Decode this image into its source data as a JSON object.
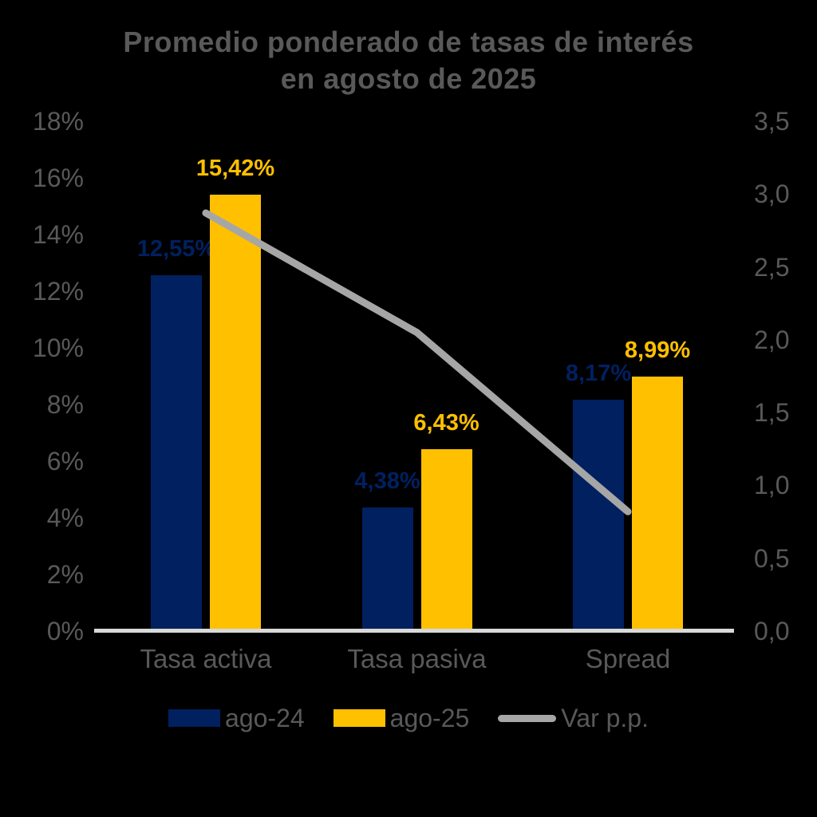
{
  "title": {
    "line1": "Promedio ponderado de tasas de interés",
    "line2": "en agosto de 2025"
  },
  "colors": {
    "background": "#000000",
    "text_gray": "#595959",
    "bar_navy": "#002060",
    "bar_yellow": "#FFC000",
    "line_gray": "#A6A6A6",
    "axis_line": "#D9D9D9"
  },
  "chart_data": {
    "type": "bar",
    "subtype": "grouped-bars-with-secondary-axis-line",
    "title": "Promedio ponderado de tasas de interés en agosto de 2025",
    "categories": [
      "Tasa activa",
      "Tasa pasiva",
      "Spread"
    ],
    "series": [
      {
        "name": "ago-24",
        "kind": "bar",
        "color": "#002060",
        "axis": "left",
        "values": [
          12.55,
          4.38,
          8.17
        ],
        "labels": [
          "12,55%",
          "4,38%",
          "8,17%"
        ]
      },
      {
        "name": "ago-25",
        "kind": "bar",
        "color": "#FFC000",
        "axis": "left",
        "values": [
          15.42,
          6.43,
          8.99
        ],
        "labels": [
          "15,42%",
          "6,43%",
          "8,99%"
        ]
      },
      {
        "name": "Var p.p.",
        "kind": "line",
        "color": "#A6A6A6",
        "axis": "right",
        "values": [
          2.87,
          2.05,
          0.82
        ]
      }
    ],
    "left_axis": {
      "ticks": [
        "18%",
        "16%",
        "14%",
        "12%",
        "10%",
        "8%",
        "6%",
        "4%",
        "2%",
        "0%"
      ],
      "min": 0,
      "max": 18,
      "unit": "%"
    },
    "right_axis": {
      "ticks": [
        "3,5",
        "3,0",
        "2,5",
        "2,0",
        "1,5",
        "1,0",
        "0,5",
        "0,0"
      ],
      "min": 0,
      "max": 3.5
    },
    "legend_position": "bottom",
    "grid": false
  }
}
